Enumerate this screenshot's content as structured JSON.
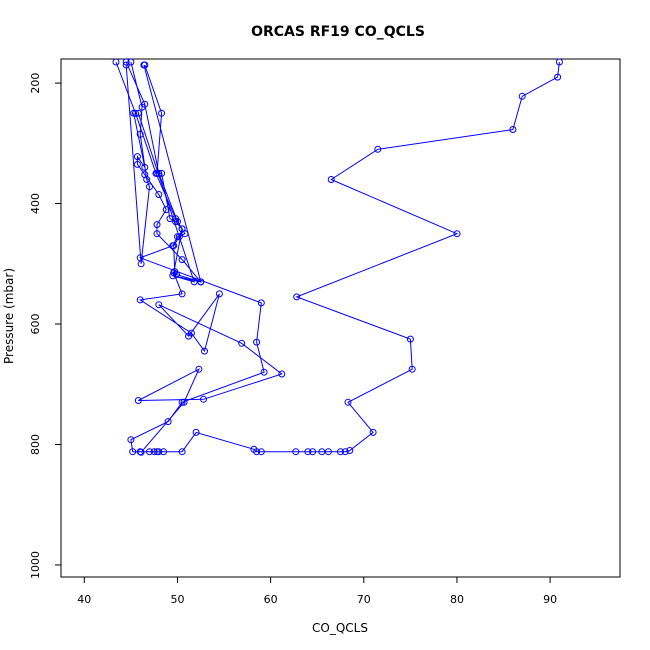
{
  "chart_data": {
    "type": "line",
    "title": "ORCAS RF19 CO_QCLS",
    "xlabel": "CO_QCLS",
    "ylabel": "Pressure (mbar)",
    "xlim": [
      37.5,
      97.5
    ],
    "ylim": [
      1020,
      160
    ],
    "y_reversed": true,
    "x_ticks": [
      40,
      50,
      60,
      70,
      80,
      90
    ],
    "y_ticks": [
      200,
      400,
      600,
      800,
      1000
    ],
    "grid": false,
    "series": [
      {
        "color": "#0000ff",
        "points": [
          [
            91.0,
            165
          ],
          [
            90.8,
            190
          ],
          [
            87.0,
            222
          ],
          [
            86.0,
            277
          ],
          [
            71.5,
            310
          ],
          [
            66.5,
            360
          ],
          [
            80.0,
            450
          ],
          [
            62.8,
            555
          ],
          [
            75.0,
            625
          ],
          [
            75.2,
            675
          ],
          [
            68.3,
            730
          ],
          [
            71.0,
            780
          ],
          [
            68.5,
            810
          ],
          [
            68.0,
            812
          ],
          [
            67.5,
            812
          ],
          [
            66.2,
            812
          ],
          [
            65.5,
            812
          ],
          [
            64.5,
            812
          ],
          [
            64.0,
            812
          ],
          [
            62.7,
            812
          ],
          [
            59.0,
            812
          ],
          [
            58.5,
            812
          ],
          [
            58.2,
            808
          ],
          [
            52.0,
            780
          ],
          [
            50.5,
            812
          ],
          [
            48.5,
            812
          ],
          [
            48.0,
            812
          ],
          [
            47.8,
            812
          ],
          [
            47.5,
            812
          ],
          [
            47.0,
            812
          ],
          [
            46.0,
            812
          ],
          [
            45.2,
            812
          ],
          [
            45.0,
            792
          ],
          [
            49.0,
            762
          ],
          [
            50.5,
            730
          ],
          [
            59.3,
            680
          ],
          [
            58.5,
            630
          ],
          [
            59.0,
            565
          ],
          [
            46.0,
            490
          ],
          [
            49.5,
            470
          ],
          [
            50.0,
            455
          ],
          [
            50.8,
            450
          ],
          [
            50.0,
            430
          ],
          [
            48.0,
            350
          ],
          [
            46.5,
            235
          ],
          [
            44.5,
            165
          ]
        ]
      },
      {
        "color": "#0000ff",
        "points": [
          [
            43.4,
            165
          ],
          [
            45.5,
            250
          ],
          [
            47.7,
            350
          ],
          [
            49.8,
            425
          ],
          [
            50.5,
            442
          ],
          [
            49.6,
            515
          ],
          [
            50.5,
            550
          ],
          [
            46.0,
            560
          ],
          [
            51.5,
            615
          ],
          [
            52.9,
            645
          ],
          [
            54.5,
            550
          ],
          [
            51.2,
            620
          ],
          [
            48.0,
            568
          ],
          [
            56.9,
            632
          ],
          [
            61.2,
            683
          ],
          [
            52.8,
            725
          ],
          [
            45.8,
            727
          ],
          [
            52.3,
            675
          ],
          [
            50.7,
            730
          ],
          [
            46.1,
            813
          ]
        ]
      },
      {
        "color": "#0000ff",
        "points": [
          [
            45.3,
            250
          ],
          [
            46.5,
            340
          ],
          [
            45.7,
            322
          ],
          [
            45.7,
            335
          ],
          [
            46.5,
            352
          ],
          [
            48.0,
            385
          ],
          [
            48.8,
            410
          ],
          [
            47.8,
            435
          ],
          [
            47.8,
            450
          ],
          [
            50.5,
            493
          ],
          [
            52.5,
            530
          ],
          [
            49.5,
            520
          ],
          [
            51.8,
            530
          ],
          [
            45.8,
            250
          ]
        ]
      },
      {
        "color": "#0000ff",
        "points": [
          [
            45.0,
            165
          ],
          [
            46.2,
            240
          ],
          [
            46.0,
            285
          ],
          [
            46.7,
            360
          ],
          [
            47.0,
            372
          ],
          [
            46.1,
            500
          ],
          [
            44.5,
            170
          ]
        ]
      },
      {
        "color": "#0000ff",
        "points": [
          [
            46.5,
            170
          ],
          [
            48.3,
            250
          ],
          [
            47.8,
            350
          ],
          [
            48.3,
            350
          ],
          [
            49.2,
            425
          ],
          [
            49.8,
            430
          ],
          [
            50.5,
            442
          ],
          [
            50.2,
            455
          ],
          [
            49.6,
            470
          ],
          [
            49.7,
            513
          ],
          [
            49.9,
            518
          ],
          [
            52.5,
            530
          ],
          [
            46.4,
            170
          ]
        ]
      }
    ]
  }
}
